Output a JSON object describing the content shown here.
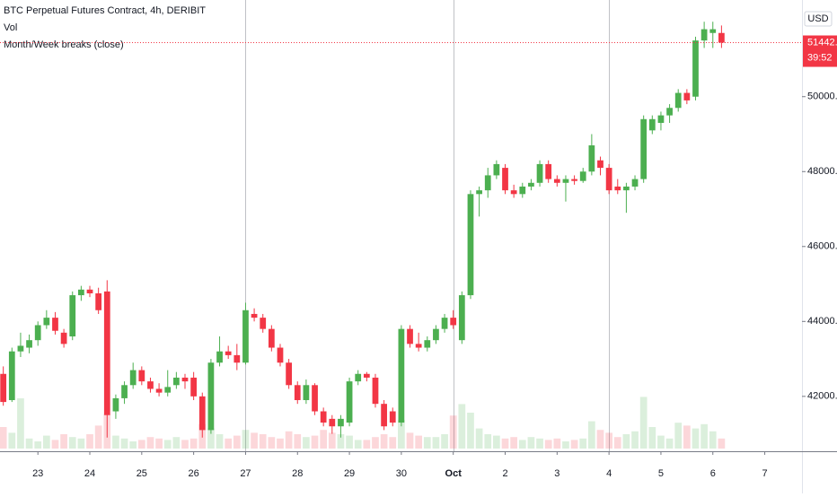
{
  "chart_data": {
    "type": "candlestick",
    "title": "BTC Perpetual Futures Contract, 4h, DERIBIT",
    "indicators": [
      "Vol",
      "Month/Week breaks (close)"
    ],
    "currency": "USD",
    "last_price_label": "51442.0",
    "countdown": "39:52",
    "up_color": "#4caf50",
    "down_color": "#f23645",
    "ylim": [
      40535,
      52580
    ],
    "yticks": [
      {
        "value": 42000,
        "label": "42000.0"
      },
      {
        "value": 44000,
        "label": "44000.0"
      },
      {
        "value": 46000,
        "label": "46000.0"
      },
      {
        "value": 48000,
        "label": "48000.0"
      },
      {
        "value": 50000,
        "label": "50000.0"
      }
    ],
    "xlim": [
      -0.38,
      92.3
    ],
    "xticks": [
      {
        "value": 4,
        "label": "23"
      },
      {
        "value": 10,
        "label": "24"
      },
      {
        "value": 16,
        "label": "25"
      },
      {
        "value": 22,
        "label": "26"
      },
      {
        "value": 28,
        "label": "27"
      },
      {
        "value": 34,
        "label": "28"
      },
      {
        "value": 40,
        "label": "29"
      },
      {
        "value": 46,
        "label": "30"
      },
      {
        "value": 52,
        "label": "Oct"
      },
      {
        "value": 58,
        "label": "2"
      },
      {
        "value": 64,
        "label": "3"
      },
      {
        "value": 70,
        "label": "4"
      },
      {
        "value": 76,
        "label": "5"
      },
      {
        "value": 82,
        "label": "6"
      },
      {
        "value": 88,
        "label": "7"
      }
    ],
    "breaks": [
      28,
      52,
      70
    ],
    "vlim": [
      0,
      100
    ],
    "ohlc": [
      [
        42600,
        42800,
        41750,
        41850
      ],
      [
        41900,
        43300,
        41850,
        43200
      ],
      [
        43200,
        43700,
        43050,
        43350
      ],
      [
        43300,
        43650,
        43150,
        43500
      ],
      [
        43500,
        44000,
        43350,
        43900
      ],
      [
        43900,
        44300,
        43800,
        44100
      ],
      [
        44100,
        44250,
        43650,
        43750
      ],
      [
        43700,
        43800,
        43300,
        43400
      ],
      [
        43600,
        44800,
        43500,
        44700
      ],
      [
        44700,
        44950,
        44550,
        44850
      ],
      [
        44850,
        44950,
        44650,
        44750
      ],
      [
        44750,
        44900,
        44200,
        44300
      ],
      [
        44800,
        45100,
        40900,
        41500
      ],
      [
        41600,
        42050,
        41400,
        41950
      ],
      [
        41950,
        42400,
        41800,
        42300
      ],
      [
        42300,
        42900,
        42200,
        42700
      ],
      [
        42700,
        42800,
        42300,
        42400
      ],
      [
        42400,
        42500,
        42100,
        42200
      ],
      [
        42200,
        42350,
        42000,
        42100
      ],
      [
        42100,
        42700,
        42000,
        42250
      ],
      [
        42300,
        42650,
        42200,
        42500
      ],
      [
        42500,
        42600,
        42200,
        42400
      ],
      [
        42500,
        42650,
        41900,
        42000
      ],
      [
        42000,
        42100,
        40900,
        41100
      ],
      [
        41100,
        43000,
        41000,
        42900
      ],
      [
        42900,
        43600,
        42800,
        43200
      ],
      [
        43200,
        43350,
        43000,
        43100
      ],
      [
        43100,
        43400,
        42700,
        42900
      ],
      [
        42900,
        44500,
        42850,
        44300
      ],
      [
        44200,
        44350,
        44000,
        44100
      ],
      [
        44100,
        44200,
        43700,
        43800
      ],
      [
        43800,
        43900,
        43200,
        43300
      ],
      [
        43300,
        43400,
        42800,
        42900
      ],
      [
        42900,
        43000,
        42200,
        42300
      ],
      [
        42300,
        42400,
        41800,
        41900
      ],
      [
        41900,
        42450,
        41800,
        42300
      ],
      [
        42300,
        42350,
        41500,
        41600
      ],
      [
        41600,
        41700,
        41200,
        41300
      ],
      [
        41400,
        41500,
        41000,
        41200
      ],
      [
        41200,
        41500,
        40900,
        41400
      ],
      [
        41300,
        42500,
        41200,
        42400
      ],
      [
        42400,
        42700,
        42300,
        42600
      ],
      [
        42600,
        42650,
        42400,
        42500
      ],
      [
        42500,
        42600,
        41700,
        41800
      ],
      [
        41800,
        41900,
        41100,
        41200
      ],
      [
        41600,
        41700,
        41200,
        41300
      ],
      [
        41300,
        43900,
        41200,
        43800
      ],
      [
        43800,
        43900,
        43300,
        43400
      ],
      [
        43400,
        43700,
        43200,
        43300
      ],
      [
        43300,
        43600,
        43200,
        43500
      ],
      [
        43500,
        43900,
        43400,
        43800
      ],
      [
        43800,
        44200,
        43700,
        44100
      ],
      [
        44100,
        44300,
        43800,
        43900
      ],
      [
        43500,
        44800,
        43400,
        44700
      ],
      [
        44700,
        47500,
        44600,
        47400
      ],
      [
        47400,
        47600,
        46800,
        47500
      ],
      [
        47500,
        48100,
        47300,
        47900
      ],
      [
        47900,
        48300,
        47800,
        48200
      ],
      [
        48100,
        48200,
        47400,
        47500
      ],
      [
        47500,
        47650,
        47300,
        47400
      ],
      [
        47400,
        47700,
        47300,
        47600
      ],
      [
        47600,
        47800,
        47500,
        47700
      ],
      [
        47700,
        48300,
        47600,
        48200
      ],
      [
        48200,
        48300,
        47700,
        47800
      ],
      [
        47800,
        47900,
        47600,
        47700
      ],
      [
        47700,
        47900,
        47200,
        47800
      ],
      [
        47800,
        47900,
        47650,
        47750
      ],
      [
        47750,
        48100,
        47700,
        48000
      ],
      [
        48000,
        49000,
        47900,
        48700
      ],
      [
        48300,
        48400,
        47900,
        48100
      ],
      [
        48100,
        48200,
        47400,
        47500
      ],
      [
        47600,
        47800,
        47400,
        47500
      ],
      [
        47500,
        47700,
        46900,
        47600
      ],
      [
        47600,
        47900,
        47500,
        47800
      ],
      [
        47800,
        49500,
        47700,
        49400
      ],
      [
        49100,
        49500,
        49000,
        49400
      ],
      [
        49300,
        49600,
        49100,
        49500
      ],
      [
        49500,
        49800,
        49300,
        49700
      ],
      [
        49700,
        50200,
        49600,
        50100
      ],
      [
        50100,
        50200,
        49800,
        49900
      ],
      [
        50000,
        51600,
        49900,
        51500
      ],
      [
        51500,
        52000,
        51300,
        51800
      ],
      [
        51700,
        52000,
        51300,
        51800
      ],
      [
        51700,
        51900,
        51300,
        51442
      ]
    ],
    "volumes": [
      30,
      22,
      70,
      14,
      10,
      18,
      12,
      20,
      16,
      14,
      20,
      32,
      48,
      18,
      14,
      10,
      12,
      16,
      14,
      12,
      16,
      12,
      14,
      34,
      28,
      20,
      14,
      18,
      26,
      22,
      20,
      16,
      14,
      24,
      20,
      16,
      18,
      26,
      22,
      20,
      18,
      12,
      12,
      16,
      20,
      16,
      40,
      22,
      18,
      16,
      16,
      20,
      46,
      62,
      50,
      28,
      20,
      18,
      14,
      16,
      12,
      16,
      14,
      12,
      14,
      10,
      12,
      14,
      38,
      26,
      22,
      16,
      20,
      24,
      72,
      30,
      18,
      14,
      36,
      32,
      28,
      34,
      24,
      14
    ]
  }
}
